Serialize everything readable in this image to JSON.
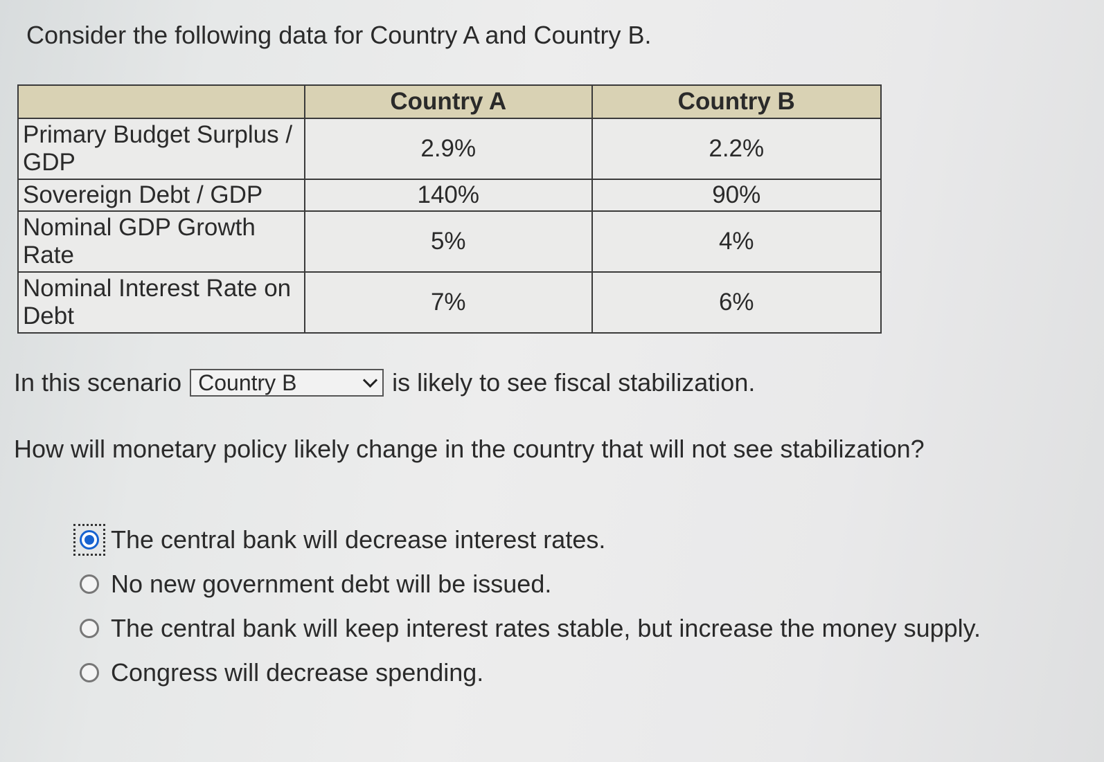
{
  "intro": "Consider the following data for Country A and Country B.",
  "table": {
    "columns": [
      "",
      "Country A",
      "Country B"
    ],
    "rows": [
      {
        "label": "Primary Budget Surplus / GDP",
        "country_a": "2.9%",
        "country_b": "2.2%"
      },
      {
        "label": "Sovereign Debt / GDP",
        "country_a": "140%",
        "country_b": "90%"
      },
      {
        "label": "Nominal GDP Growth Rate",
        "country_a": "5%",
        "country_b": "4%"
      },
      {
        "label": "Nominal Interest Rate on Debt",
        "country_a": "7%",
        "country_b": "6%"
      }
    ]
  },
  "scenario": {
    "prefix": "In this scenario",
    "selected": "Country B",
    "suffix": "is likely to see fiscal stabilization."
  },
  "question": "How will monetary policy likely change in the country that will not see stabilization?",
  "options": [
    {
      "label": "The central bank will decrease interest rates.",
      "selected": true
    },
    {
      "label": "No new government debt will be issued.",
      "selected": false
    },
    {
      "label": "The central bank will keep interest rates stable, but increase the money supply.",
      "selected": false
    },
    {
      "label": "Congress will decrease spending.",
      "selected": false
    }
  ],
  "colors": {
    "header_bg": "#d9d2b4",
    "radio_selected": "#1763d0"
  }
}
